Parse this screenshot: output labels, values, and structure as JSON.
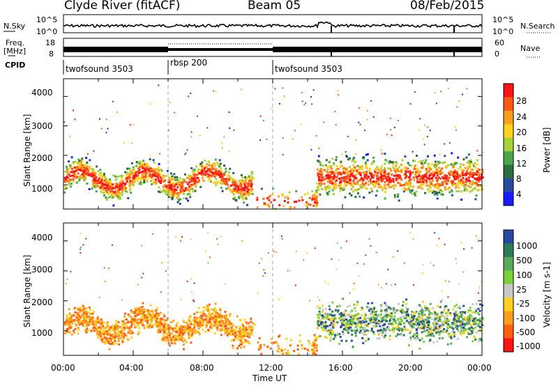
{
  "header": {
    "station": "Clyde River (fitACF)",
    "beam": "Beam 05",
    "date": "08/Feb/2015"
  },
  "noise_panel": {
    "left_label": "N.Sky",
    "right_label": "N.Search",
    "left_ticks": [
      "10^5",
      "10^0"
    ],
    "right_ticks": [
      "10^5",
      "10^0"
    ]
  },
  "freq_panel": {
    "left_label_1": "Freq.",
    "left_label_2": "[MHz]",
    "left_ticks": [
      "18",
      "8"
    ],
    "right_label": "Nave",
    "right_ticks": [
      "60",
      "0"
    ]
  },
  "cpid": {
    "label": "CPID",
    "segments": [
      {
        "name": "twofsound 3503",
        "start_hour": 0,
        "end_hour": 6
      },
      {
        "name": "rbsp 200",
        "start_hour": 6,
        "end_hour": 12
      },
      {
        "name": "twofsound 3503",
        "start_hour": 12,
        "end_hour": 24
      }
    ]
  },
  "chart_data": [
    {
      "type": "heatmap",
      "title": "Power",
      "ylabel": "Slant Range [km]",
      "ylim": [
        180,
        4600
      ],
      "yticks": [
        1000,
        2000,
        3000,
        4000
      ],
      "xlim": [
        0,
        24
      ],
      "colorbar": {
        "label": "Power [dB]",
        "range": [
          0,
          32
        ],
        "ticks": [
          "4",
          "8",
          "12",
          "16",
          "20",
          "24",
          "28"
        ]
      }
    },
    {
      "type": "heatmap",
      "title": "Velocity",
      "ylabel": "Slant Range [km]",
      "ylim": [
        180,
        4600
      ],
      "yticks": [
        1000,
        2000,
        3000,
        4000
      ],
      "xlim": [
        0,
        24
      ],
      "xlabel": "Time UT",
      "xticks": [
        "00:00",
        "04:00",
        "08:00",
        "12:00",
        "16:00",
        "20:00",
        "00:00"
      ],
      "colorbar": {
        "label": "Velocity [m s-1]",
        "ticks": [
          "1000",
          "500",
          "100",
          "25",
          "-25",
          "-100",
          "-500",
          "-1000"
        ]
      }
    }
  ],
  "colors": {
    "power_scale": [
      "#1a1aff",
      "#2a4aa0",
      "#2e6e3e",
      "#4aa84a",
      "#a8d23a",
      "#ffd21e",
      "#ff9e1e",
      "#ff5a14",
      "#ff1414"
    ],
    "velocity_scale": [
      "#2a4aa0",
      "#2e7a5a",
      "#5aa85a",
      "#7ad23a",
      "#c8c8c8",
      "#ffd21e",
      "#ff9e1e",
      "#ff6014",
      "#ff1414"
    ]
  }
}
